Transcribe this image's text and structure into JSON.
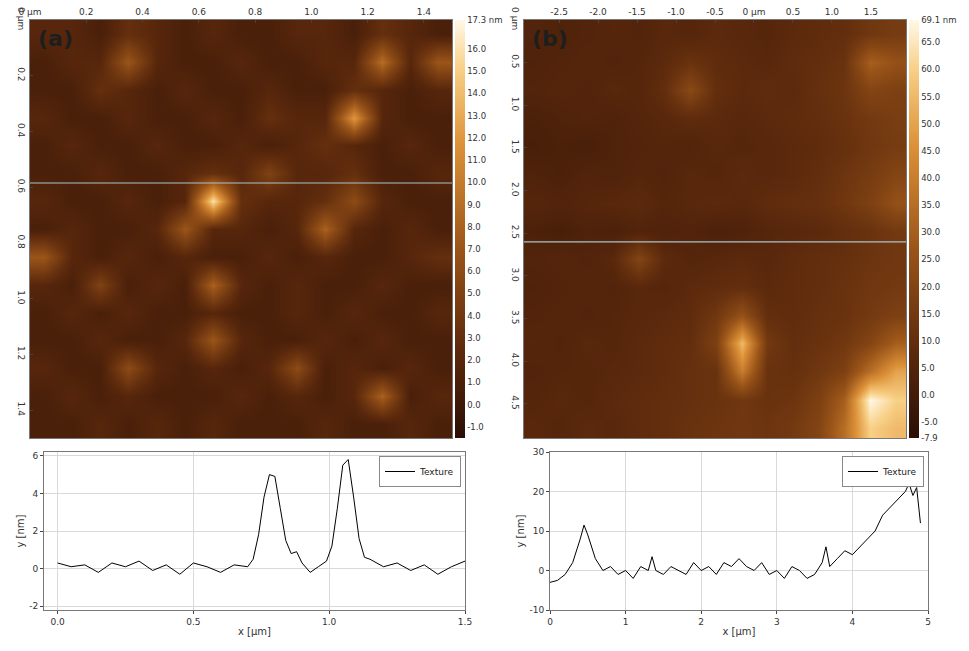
{
  "chart_data": [
    {
      "type": "heatmap",
      "title": "(a)",
      "x": [
        0.05,
        0.15,
        0.25,
        0.35,
        0.45,
        0.55,
        0.65,
        0.75,
        0.85,
        0.95,
        1.05,
        1.15,
        1.25,
        1.35,
        1.45
      ],
      "y": [
        0.05,
        0.15,
        0.25,
        0.35,
        0.45,
        0.55,
        0.65,
        0.75,
        0.85,
        0.95,
        1.05,
        1.15,
        1.25,
        1.35,
        1.45
      ],
      "z": [
        [
          2,
          2,
          1,
          3,
          2,
          1,
          2,
          1,
          1,
          2,
          2,
          1,
          3,
          2,
          1
        ],
        [
          1,
          2,
          2,
          7,
          2,
          1,
          1,
          2,
          1,
          1,
          2,
          2,
          9,
          2,
          7
        ],
        [
          1,
          1,
          3,
          2,
          1,
          2,
          1,
          1,
          2,
          1,
          1,
          3,
          2,
          1,
          2
        ],
        [
          2,
          1,
          1,
          2,
          1,
          1,
          2,
          1,
          3,
          2,
          2,
          12,
          2,
          1,
          1
        ],
        [
          1,
          2,
          1,
          1,
          2,
          1,
          1,
          2,
          1,
          2,
          3,
          2,
          1,
          2,
          1
        ],
        [
          1,
          1,
          2,
          1,
          1,
          2,
          3,
          2,
          5,
          2,
          2,
          3,
          1,
          1,
          2
        ],
        [
          2,
          1,
          1,
          2,
          1,
          2,
          16,
          3,
          2,
          2,
          3,
          6,
          2,
          1,
          1
        ],
        [
          1,
          2,
          1,
          1,
          2,
          7,
          2,
          2,
          1,
          2,
          8,
          2,
          1,
          2,
          1
        ],
        [
          7,
          2,
          1,
          2,
          1,
          2,
          1,
          1,
          2,
          1,
          2,
          1,
          1,
          2,
          3
        ],
        [
          2,
          1,
          5,
          1,
          2,
          1,
          8,
          2,
          1,
          2,
          1,
          1,
          2,
          1,
          1
        ],
        [
          1,
          2,
          1,
          2,
          1,
          1,
          2,
          1,
          1,
          2,
          1,
          2,
          1,
          1,
          2
        ],
        [
          1,
          1,
          2,
          1,
          1,
          2,
          7,
          2,
          1,
          1,
          2,
          1,
          2,
          1,
          1
        ],
        [
          2,
          1,
          1,
          6,
          2,
          1,
          2,
          1,
          2,
          6,
          1,
          2,
          1,
          2,
          1
        ],
        [
          1,
          2,
          1,
          2,
          1,
          1,
          1,
          2,
          1,
          2,
          1,
          2,
          8,
          1,
          2
        ],
        [
          1,
          1,
          2,
          1,
          2,
          1,
          2,
          1,
          1,
          1,
          2,
          1,
          1,
          2,
          1
        ]
      ],
      "xlim": [
        0,
        1.5
      ],
      "ylim": [
        1.5,
        0
      ],
      "xticks": [
        {
          "value": 0,
          "label": "0 µm"
        },
        0.2,
        0.4,
        0.6,
        0.8,
        {
          "value": 1,
          "label": "1.0"
        },
        1.2,
        1.4
      ],
      "yticks": [
        {
          "value": 0,
          "label": "0 µm"
        },
        0.2,
        0.4,
        0.6,
        0.8,
        {
          "value": 1,
          "label": "1.0"
        },
        1.2,
        1.4
      ],
      "zlim": [
        -1.5,
        17.3
      ],
      "zticks": [
        {
          "value": -1,
          "label": "-1.0"
        },
        {
          "value": 0,
          "label": "0.0"
        },
        {
          "value": 1,
          "label": "1.0"
        },
        {
          "value": 2,
          "label": "2.0"
        },
        {
          "value": 3,
          "label": "3.0"
        },
        {
          "value": 4,
          "label": "4.0"
        },
        {
          "value": 5,
          "label": "5.0"
        },
        {
          "value": 6,
          "label": "6.0"
        },
        {
          "value": 7,
          "label": "7.0"
        },
        {
          "value": 8,
          "label": "8.0"
        },
        {
          "value": 9,
          "label": "9.0"
        },
        {
          "value": 10,
          "label": "10.0"
        },
        {
          "value": 11,
          "label": "11.0"
        },
        {
          "value": 12,
          "label": "12.0"
        },
        {
          "value": 13,
          "label": "13.0"
        },
        {
          "value": 14,
          "label": "14.0"
        },
        {
          "value": 15,
          "label": "15.0"
        },
        {
          "value": 16,
          "label": "16.0"
        },
        {
          "value": 17.3,
          "label": "17.3 nm"
        }
      ],
      "profile_y": 0.585
    },
    {
      "type": "heatmap",
      "title": "(b)",
      "x": [
        -2.8,
        -2.47,
        -2.14,
        -1.81,
        -1.48,
        -1.15,
        -0.82,
        -0.49,
        -0.16,
        0.17,
        0.5,
        0.83,
        1.16,
        1.49,
        1.82
      ],
      "y": [
        0.16,
        0.49,
        0.82,
        1.15,
        1.48,
        1.81,
        2.14,
        2.47,
        2.8,
        3.13,
        3.46,
        3.79,
        4.12,
        4.45,
        4.78
      ],
      "z": [
        [
          5,
          4,
          5,
          6,
          5,
          7,
          6,
          8,
          7,
          6,
          8,
          9,
          10,
          14,
          16
        ],
        [
          4,
          5,
          6,
          5,
          6,
          8,
          12,
          9,
          8,
          7,
          9,
          10,
          12,
          30,
          25
        ],
        [
          5,
          6,
          5,
          7,
          6,
          10,
          22,
          10,
          8,
          9,
          8,
          11,
          13,
          20,
          18
        ],
        [
          3,
          4,
          5,
          4,
          6,
          7,
          9,
          8,
          7,
          8,
          9,
          10,
          12,
          15,
          17
        ],
        [
          2,
          3,
          2,
          4,
          5,
          6,
          5,
          7,
          6,
          7,
          8,
          9,
          11,
          14,
          16
        ],
        [
          4,
          3,
          5,
          4,
          6,
          5,
          7,
          6,
          8,
          7,
          8,
          10,
          13,
          16,
          20
        ],
        [
          6,
          5,
          6,
          7,
          8,
          6,
          7,
          8,
          7,
          9,
          10,
          11,
          14,
          18,
          25
        ],
        [
          3,
          2,
          4,
          3,
          5,
          4,
          5,
          3,
          4,
          6,
          7,
          8,
          10,
          12,
          15
        ],
        [
          5,
          6,
          5,
          7,
          20,
          8,
          6,
          7,
          8,
          7,
          9,
          10,
          11,
          13,
          14
        ],
        [
          4,
          5,
          6,
          5,
          7,
          6,
          8,
          9,
          10,
          8,
          9,
          10,
          12,
          14,
          15
        ],
        [
          5,
          6,
          5,
          6,
          7,
          8,
          9,
          14,
          25,
          10,
          9,
          11,
          12,
          15,
          18
        ],
        [
          6,
          5,
          7,
          6,
          8,
          9,
          10,
          18,
          55,
          15,
          10,
          12,
          14,
          20,
          30
        ],
        [
          5,
          6,
          6,
          7,
          8,
          9,
          11,
          12,
          40,
          12,
          11,
          14,
          18,
          35,
          50
        ],
        [
          6,
          7,
          6,
          8,
          9,
          10,
          11,
          12,
          14,
          12,
          13,
          18,
          30,
          69,
          60
        ],
        [
          7,
          6,
          8,
          7,
          9,
          10,
          12,
          13,
          14,
          13,
          15,
          20,
          35,
          60,
          55
        ]
      ],
      "xlim": [
        -2.95,
        1.95
      ],
      "ylim": [
        4.9,
        0
      ],
      "xticks": [
        -2.5,
        {
          "value": -2,
          "label": "-2.0"
        },
        -1.5,
        {
          "value": -1,
          "label": "-1.0"
        },
        -0.5,
        {
          "value": 0,
          "label": "0 µm"
        },
        0.5,
        {
          "value": 1,
          "label": "1.0"
        },
        1.5
      ],
      "yticks": [
        {
          "value": 0,
          "label": "0 µm"
        },
        0.5,
        {
          "value": 1,
          "label": "1.0"
        },
        1.5,
        {
          "value": 2,
          "label": "2.0"
        },
        2.5,
        {
          "value": 3,
          "label": "3.0"
        },
        3.5,
        {
          "value": 4,
          "label": "4.0"
        },
        4.5
      ],
      "zlim": [
        -7.9,
        69.1
      ],
      "zticks": [
        -7.9,
        {
          "value": -5,
          "label": "-5.0"
        },
        {
          "value": 0,
          "label": "0.0"
        },
        {
          "value": 5,
          "label": "5.0"
        },
        {
          "value": 10,
          "label": "10.0"
        },
        {
          "value": 15,
          "label": "15.0"
        },
        {
          "value": 20,
          "label": "20.0"
        },
        {
          "value": 25,
          "label": "25.0"
        },
        {
          "value": 30,
          "label": "30.0"
        },
        {
          "value": 35,
          "label": "35.0"
        },
        {
          "value": 40,
          "label": "40.0"
        },
        {
          "value": 45,
          "label": "45.0"
        },
        {
          "value": 50,
          "label": "50.0"
        },
        {
          "value": 55,
          "label": "55.0"
        },
        {
          "value": 60,
          "label": "60.0"
        },
        {
          "value": 65,
          "label": "65.0"
        },
        {
          "value": 69.1,
          "label": "69.1 nm"
        }
      ],
      "profile_y": 2.6
    },
    {
      "type": "line",
      "xlabel": "x [µm]",
      "ylabel": "y [nm]",
      "x": [
        0,
        0.05,
        0.1,
        0.15,
        0.2,
        0.25,
        0.3,
        0.35,
        0.4,
        0.45,
        0.5,
        0.55,
        0.6,
        0.65,
        0.7,
        0.72,
        0.74,
        0.76,
        0.78,
        0.8,
        0.82,
        0.84,
        0.86,
        0.88,
        0.9,
        0.93,
        0.96,
        0.99,
        1.01,
        1.03,
        1.05,
        1.07,
        1.09,
        1.11,
        1.13,
        1.15,
        1.2,
        1.25,
        1.3,
        1.35,
        1.4,
        1.45,
        1.5
      ],
      "series": [
        {
          "name": "Texture",
          "color": "#000000",
          "values": [
            0.3,
            0.1,
            0.2,
            -0.2,
            0.3,
            0.1,
            0.4,
            -0.1,
            0.2,
            -0.3,
            0.3,
            0.1,
            -0.2,
            0.2,
            0.1,
            0.5,
            1.8,
            3.8,
            5.0,
            4.9,
            3.2,
            1.5,
            0.8,
            0.9,
            0.3,
            -0.2,
            0.1,
            0.4,
            1.2,
            3.2,
            5.5,
            5.8,
            3.8,
            1.6,
            0.6,
            0.5,
            0.1,
            0.3,
            -0.1,
            0.2,
            -0.3,
            0.1,
            0.4
          ]
        }
      ],
      "xlim": [
        -0.05,
        1.5
      ],
      "ylim": [
        -2.2,
        6.2
      ],
      "xticks": [
        {
          "value": 0,
          "label": "0.0"
        },
        0.5,
        {
          "value": 1,
          "label": "1.0"
        },
        1.5
      ],
      "yticks": [
        -2,
        0,
        2,
        4,
        6
      ],
      "grid": true,
      "legend": "top right"
    },
    {
      "type": "line",
      "xlabel": "x [µm]",
      "ylabel": "y [nm]",
      "x": [
        0,
        0.1,
        0.2,
        0.3,
        0.4,
        0.45,
        0.5,
        0.6,
        0.7,
        0.8,
        0.9,
        1.0,
        1.1,
        1.2,
        1.3,
        1.35,
        1.4,
        1.5,
        1.6,
        1.7,
        1.8,
        1.9,
        2.0,
        2.1,
        2.2,
        2.3,
        2.4,
        2.5,
        2.6,
        2.7,
        2.8,
        2.9,
        3.0,
        3.1,
        3.2,
        3.3,
        3.4,
        3.5,
        3.6,
        3.65,
        3.7,
        3.8,
        3.9,
        4.0,
        4.1,
        4.2,
        4.3,
        4.4,
        4.5,
        4.6,
        4.7,
        4.75,
        4.8,
        4.85,
        4.9
      ],
      "series": [
        {
          "name": "Texture",
          "color": "#000000",
          "values": [
            -3,
            -2.5,
            -1,
            2,
            8,
            11.5,
            9,
            3,
            0,
            1,
            -1,
            0,
            -2,
            1,
            0,
            3.5,
            0,
            -1,
            1,
            0,
            -1,
            2,
            0,
            1,
            -1,
            2,
            1,
            3,
            1,
            0,
            2,
            -1,
            0,
            -2,
            1,
            0,
            -2,
            -1,
            2,
            6,
            1,
            3,
            5,
            4,
            6,
            8,
            10,
            14,
            16,
            18,
            20,
            22,
            19,
            21,
            12
          ]
        }
      ],
      "xlim": [
        0,
        5
      ],
      "ylim": [
        -10,
        30
      ],
      "xticks": [
        0,
        1,
        2,
        3,
        4,
        5
      ],
      "yticks": [
        -10,
        0,
        10,
        20,
        30
      ],
      "grid": true,
      "legend": "top right"
    }
  ]
}
